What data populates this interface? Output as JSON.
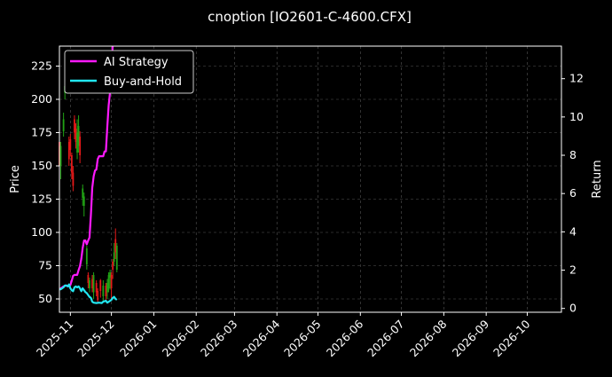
{
  "chart_data": {
    "type": "line",
    "title": "cnoption [IO2601-C-4600.CFX]",
    "xlabel": "",
    "ylabel_left": "Price",
    "ylabel_right": "Return",
    "x_range": [
      "2025-10-24",
      "2026-10-26"
    ],
    "x_ticks": [
      "2025-11",
      "2025-12",
      "2026-01",
      "2026-02",
      "2026-03",
      "2026-04",
      "2026-05",
      "2026-06",
      "2026-07",
      "2026-08",
      "2026-09",
      "2026-10"
    ],
    "x_tick_dates": [
      "2025-11-01",
      "2025-12-01",
      "2026-01-01",
      "2026-02-01",
      "2026-03-01",
      "2026-04-01",
      "2026-05-01",
      "2026-06-01",
      "2026-07-01",
      "2026-08-01",
      "2026-09-01",
      "2026-10-01"
    ],
    "left_axis": {
      "ylim": [
        40,
        240
      ],
      "ticks": [
        50,
        75,
        100,
        125,
        150,
        175,
        200,
        225
      ]
    },
    "right_axis": {
      "ylim": [
        -0.2,
        13.7
      ],
      "ticks": [
        0,
        2,
        4,
        6,
        8,
        10,
        12
      ]
    },
    "grid": true,
    "legend": {
      "position": "top-left",
      "entries": [
        "AI Strategy",
        "Buy-and-Hold"
      ]
    },
    "colors": {
      "ai": "#ff1aff",
      "bh": "#22e6f0",
      "up": "#21a315",
      "down": "#e61919",
      "grid": "#555555",
      "background": "#000000",
      "text": "#ffffff"
    },
    "candles": [
      {
        "date": "2025-10-24",
        "open": 168,
        "close": 150,
        "high": 172,
        "low": 145
      },
      {
        "date": "2025-10-25",
        "open": 150,
        "close": 165,
        "high": 168,
        "low": 140
      },
      {
        "date": "2025-10-27",
        "open": 176,
        "close": 185,
        "high": 190,
        "low": 172
      },
      {
        "date": "2025-10-28",
        "open": 205,
        "close": 210,
        "high": 214,
        "low": 200
      },
      {
        "date": "2025-10-31",
        "open": 168,
        "close": 155,
        "high": 172,
        "low": 150
      },
      {
        "date": "2025-11-01",
        "open": 170,
        "close": 162,
        "high": 174,
        "low": 157
      },
      {
        "date": "2025-11-02",
        "open": 158,
        "close": 145,
        "high": 160,
        "low": 140
      },
      {
        "date": "2025-11-03",
        "open": 145,
        "close": 135,
        "high": 150,
        "low": 131
      },
      {
        "date": "2025-11-04",
        "open": 185,
        "close": 175,
        "high": 188,
        "low": 170
      },
      {
        "date": "2025-11-05",
        "open": 178,
        "close": 168,
        "high": 182,
        "low": 163
      },
      {
        "date": "2025-11-06",
        "open": 160,
        "close": 175,
        "high": 185,
        "low": 155
      },
      {
        "date": "2025-11-07",
        "open": 165,
        "close": 180,
        "high": 188,
        "low": 160
      },
      {
        "date": "2025-11-08",
        "open": 172,
        "close": 158,
        "high": 176,
        "low": 152
      },
      {
        "date": "2025-11-10",
        "open": 126,
        "close": 133,
        "high": 136,
        "low": 120
      },
      {
        "date": "2025-11-11",
        "open": 120,
        "close": 127,
        "high": 130,
        "low": 112
      },
      {
        "date": "2025-11-13",
        "open": 76,
        "close": 88,
        "high": 90,
        "low": 72
      },
      {
        "date": "2025-11-14",
        "open": 68,
        "close": 62,
        "high": 70,
        "low": 58
      },
      {
        "date": "2025-11-15",
        "open": 58,
        "close": 64,
        "high": 66,
        "low": 55
      },
      {
        "date": "2025-11-17",
        "open": 65,
        "close": 58,
        "high": 68,
        "low": 55
      },
      {
        "date": "2025-11-18",
        "open": 55,
        "close": 68,
        "high": 70,
        "low": 50
      },
      {
        "date": "2025-11-20",
        "open": 62,
        "close": 55,
        "high": 64,
        "low": 52
      },
      {
        "date": "2025-11-21",
        "open": 56,
        "close": 49,
        "high": 58,
        "low": 47
      },
      {
        "date": "2025-11-23",
        "open": 64,
        "close": 56,
        "high": 65,
        "low": 51
      },
      {
        "date": "2025-11-25",
        "open": 52,
        "close": 60,
        "high": 64,
        "low": 48
      },
      {
        "date": "2025-11-27",
        "open": 60,
        "close": 52,
        "high": 62,
        "low": 48
      },
      {
        "date": "2025-11-28",
        "open": 55,
        "close": 62,
        "high": 65,
        "low": 50
      },
      {
        "date": "2025-11-29",
        "open": 58,
        "close": 68,
        "high": 70,
        "low": 55
      },
      {
        "date": "2025-11-30",
        "open": 66,
        "close": 70,
        "high": 72,
        "low": 57
      },
      {
        "date": "2025-12-01",
        "open": 68,
        "close": 58,
        "high": 70,
        "low": 50
      },
      {
        "date": "2025-12-02",
        "open": 78,
        "close": 72,
        "high": 80,
        "low": 65
      },
      {
        "date": "2025-12-03",
        "open": 78,
        "close": 85,
        "high": 92,
        "low": 75
      },
      {
        "date": "2025-12-04",
        "open": 95,
        "close": 85,
        "high": 103,
        "low": 80
      },
      {
        "date": "2025-12-05",
        "open": 72,
        "close": 90,
        "high": 92,
        "low": 70
      }
    ],
    "series": [
      {
        "name": "AI Strategy",
        "points": [
          [
            "2025-10-24",
            1.0
          ],
          [
            "2025-10-27",
            1.15
          ],
          [
            "2025-10-29",
            1.2
          ],
          [
            "2025-10-31",
            1.15
          ],
          [
            "2025-11-01",
            1.22
          ],
          [
            "2025-11-02",
            1.45
          ],
          [
            "2025-11-03",
            1.7
          ],
          [
            "2025-11-04",
            1.75
          ],
          [
            "2025-11-06",
            1.75
          ],
          [
            "2025-11-07",
            2.0
          ],
          [
            "2025-11-08",
            2.2
          ],
          [
            "2025-11-09",
            2.6
          ],
          [
            "2025-11-10",
            3.15
          ],
          [
            "2025-11-11",
            3.55
          ],
          [
            "2025-11-12",
            3.55
          ],
          [
            "2025-11-13",
            3.35
          ],
          [
            "2025-11-14",
            3.55
          ],
          [
            "2025-11-15",
            3.7
          ],
          [
            "2025-11-16",
            4.9
          ],
          [
            "2025-11-17",
            6.3
          ],
          [
            "2025-11-18",
            6.9
          ],
          [
            "2025-11-19",
            7.2
          ],
          [
            "2025-11-20",
            7.25
          ],
          [
            "2025-11-21",
            7.8
          ],
          [
            "2025-11-22",
            7.95
          ],
          [
            "2025-11-23",
            7.95
          ],
          [
            "2025-11-25",
            7.95
          ],
          [
            "2025-11-26",
            8.2
          ],
          [
            "2025-11-27",
            8.2
          ],
          [
            "2025-11-28",
            9.5
          ],
          [
            "2025-11-29",
            10.6
          ],
          [
            "2025-11-30",
            11.3
          ],
          [
            "2025-12-01",
            12.8
          ],
          [
            "2025-12-02",
            13.7
          ]
        ]
      },
      {
        "name": "Buy-and-Hold",
        "points": [
          [
            "2025-10-24",
            1.0
          ],
          [
            "2025-10-25",
            1.0
          ],
          [
            "2025-10-26",
            1.05
          ],
          [
            "2025-10-27",
            1.1
          ],
          [
            "2025-10-28",
            1.2
          ],
          [
            "2025-10-29",
            1.2
          ],
          [
            "2025-10-30",
            1.15
          ],
          [
            "2025-10-31",
            1.25
          ],
          [
            "2025-11-01",
            1.05
          ],
          [
            "2025-11-02",
            0.95
          ],
          [
            "2025-11-03",
            0.9
          ],
          [
            "2025-11-04",
            1.1
          ],
          [
            "2025-11-05",
            1.15
          ],
          [
            "2025-11-06",
            1.1
          ],
          [
            "2025-11-07",
            1.15
          ],
          [
            "2025-11-08",
            1.05
          ],
          [
            "2025-11-09",
            0.9
          ],
          [
            "2025-11-10",
            1.05
          ],
          [
            "2025-11-11",
            0.95
          ],
          [
            "2025-11-12",
            0.85
          ],
          [
            "2025-11-13",
            0.8
          ],
          [
            "2025-11-14",
            0.7
          ],
          [
            "2025-11-15",
            0.6
          ],
          [
            "2025-11-16",
            0.55
          ],
          [
            "2025-11-17",
            0.35
          ],
          [
            "2025-11-18",
            0.3
          ],
          [
            "2025-11-20",
            0.28
          ],
          [
            "2025-11-22",
            0.3
          ],
          [
            "2025-11-24",
            0.28
          ],
          [
            "2025-11-25",
            0.35
          ],
          [
            "2025-11-27",
            0.4
          ],
          [
            "2025-11-28",
            0.3
          ],
          [
            "2025-11-30",
            0.4
          ],
          [
            "2025-12-01",
            0.45
          ],
          [
            "2025-12-02",
            0.55
          ],
          [
            "2025-12-03",
            0.6
          ],
          [
            "2025-12-04",
            0.5
          ],
          [
            "2025-12-05",
            0.45
          ]
        ]
      }
    ]
  }
}
